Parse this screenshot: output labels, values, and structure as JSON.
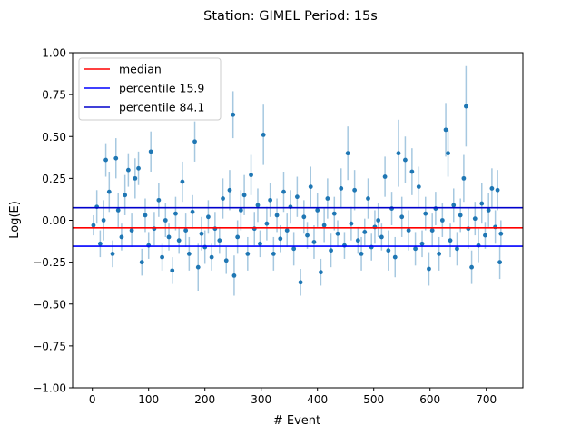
{
  "chart_data": {
    "type": "scatter",
    "title": "Station: GIMEL Period: 15s",
    "xlabel": "# Event",
    "ylabel": "Log(E)",
    "xlim": [
      -35,
      765
    ],
    "ylim": [
      -1.0,
      1.0
    ],
    "xticks": [
      0,
      100,
      200,
      300,
      400,
      500,
      600,
      700
    ],
    "xtick_labels": [
      "0",
      "100",
      "200",
      "300",
      "400",
      "500",
      "600",
      "700"
    ],
    "yticks": [
      -1.0,
      -0.75,
      -0.5,
      -0.25,
      0.0,
      0.25,
      0.5,
      0.75,
      1.0
    ],
    "ytick_labels": [
      "−1.00",
      "−0.75",
      "−0.50",
      "−0.25",
      "0.00",
      "0.25",
      "0.50",
      "0.75",
      "1.00"
    ],
    "grid": false,
    "legend_position": "top-left",
    "legend": [
      {
        "label": "median",
        "color": "#ff0000"
      },
      {
        "label": "percentile 15.9",
        "color": "#0000ff"
      },
      {
        "label": "percentile 84.1",
        "color": "#0000cc"
      }
    ],
    "hlines": [
      {
        "name": "median",
        "y": -0.045,
        "color": "#ff0000"
      },
      {
        "name": "percentile 15.9",
        "y": -0.155,
        "color": "#0000ff"
      },
      {
        "name": "percentile 84.1",
        "y": 0.075,
        "color": "#0000cc"
      }
    ],
    "point_color": "#1f77b4",
    "errorbar_color": "#a6c8e0",
    "points": [
      {
        "x": 2,
        "y": -0.03,
        "err": 0.06
      },
      {
        "x": 8,
        "y": 0.08,
        "err": 0.1
      },
      {
        "x": 14,
        "y": -0.14,
        "err": 0.08
      },
      {
        "x": 20,
        "y": 0.0,
        "err": 0.12
      },
      {
        "x": 24,
        "y": 0.36,
        "err": 0.1
      },
      {
        "x": 30,
        "y": 0.17,
        "err": 0.12
      },
      {
        "x": 36,
        "y": -0.2,
        "err": 0.08
      },
      {
        "x": 42,
        "y": 0.37,
        "err": 0.12
      },
      {
        "x": 46,
        "y": 0.06,
        "err": 0.1
      },
      {
        "x": 52,
        "y": -0.1,
        "err": 0.08
      },
      {
        "x": 58,
        "y": 0.15,
        "err": 0.12
      },
      {
        "x": 64,
        "y": 0.3,
        "err": 0.1
      },
      {
        "x": 70,
        "y": -0.06,
        "err": 0.1
      },
      {
        "x": 76,
        "y": 0.25,
        "err": 0.12
      },
      {
        "x": 82,
        "y": 0.31,
        "err": 0.1
      },
      {
        "x": 88,
        "y": -0.25,
        "err": 0.08
      },
      {
        "x": 94,
        "y": 0.03,
        "err": 0.1
      },
      {
        "x": 100,
        "y": -0.15,
        "err": 0.08
      },
      {
        "x": 104,
        "y": 0.41,
        "err": 0.12
      },
      {
        "x": 110,
        "y": -0.05,
        "err": 0.1
      },
      {
        "x": 118,
        "y": 0.12,
        "err": 0.1
      },
      {
        "x": 124,
        "y": -0.22,
        "err": 0.08
      },
      {
        "x": 130,
        "y": 0.0,
        "err": 0.1
      },
      {
        "x": 136,
        "y": -0.1,
        "err": 0.08
      },
      {
        "x": 142,
        "y": -0.3,
        "err": 0.08
      },
      {
        "x": 148,
        "y": 0.04,
        "err": 0.1
      },
      {
        "x": 154,
        "y": -0.12,
        "err": 0.08
      },
      {
        "x": 160,
        "y": 0.23,
        "err": 0.12
      },
      {
        "x": 166,
        "y": -0.06,
        "err": 0.1
      },
      {
        "x": 172,
        "y": -0.2,
        "err": 0.1
      },
      {
        "x": 178,
        "y": 0.05,
        "err": 0.1
      },
      {
        "x": 182,
        "y": 0.47,
        "err": 0.12
      },
      {
        "x": 188,
        "y": -0.28,
        "err": 0.14
      },
      {
        "x": 194,
        "y": -0.08,
        "err": 0.1
      },
      {
        "x": 200,
        "y": -0.16,
        "err": 0.1
      },
      {
        "x": 206,
        "y": 0.02,
        "err": 0.1
      },
      {
        "x": 212,
        "y": -0.22,
        "err": 0.08
      },
      {
        "x": 218,
        "y": -0.05,
        "err": 0.1
      },
      {
        "x": 226,
        "y": -0.12,
        "err": 0.08
      },
      {
        "x": 232,
        "y": 0.13,
        "err": 0.12
      },
      {
        "x": 238,
        "y": -0.24,
        "err": 0.08
      },
      {
        "x": 244,
        "y": 0.18,
        "err": 0.12
      },
      {
        "x": 250,
        "y": 0.63,
        "err": 0.14
      },
      {
        "x": 252,
        "y": -0.33,
        "err": 0.12
      },
      {
        "x": 258,
        "y": -0.1,
        "err": 0.1
      },
      {
        "x": 264,
        "y": 0.06,
        "err": 0.12
      },
      {
        "x": 270,
        "y": 0.15,
        "err": 0.12
      },
      {
        "x": 276,
        "y": -0.2,
        "err": 0.1
      },
      {
        "x": 282,
        "y": 0.27,
        "err": 0.12
      },
      {
        "x": 288,
        "y": -0.05,
        "err": 0.1
      },
      {
        "x": 294,
        "y": 0.09,
        "err": 0.1
      },
      {
        "x": 298,
        "y": -0.14,
        "err": 0.08
      },
      {
        "x": 304,
        "y": 0.51,
        "err": 0.18
      },
      {
        "x": 310,
        "y": -0.02,
        "err": 0.1
      },
      {
        "x": 316,
        "y": 0.12,
        "err": 0.1
      },
      {
        "x": 322,
        "y": -0.2,
        "err": 0.1
      },
      {
        "x": 328,
        "y": 0.03,
        "err": 0.1
      },
      {
        "x": 334,
        "y": -0.11,
        "err": 0.08
      },
      {
        "x": 340,
        "y": 0.17,
        "err": 0.12
      },
      {
        "x": 346,
        "y": -0.06,
        "err": 0.1
      },
      {
        "x": 352,
        "y": 0.08,
        "err": 0.1
      },
      {
        "x": 358,
        "y": -0.17,
        "err": 0.1
      },
      {
        "x": 364,
        "y": 0.14,
        "err": 0.12
      },
      {
        "x": 370,
        "y": -0.37,
        "err": 0.08
      },
      {
        "x": 376,
        "y": 0.02,
        "err": 0.1
      },
      {
        "x": 382,
        "y": -0.09,
        "err": 0.08
      },
      {
        "x": 388,
        "y": 0.2,
        "err": 0.12
      },
      {
        "x": 394,
        "y": -0.13,
        "err": 0.1
      },
      {
        "x": 400,
        "y": 0.06,
        "err": 0.1
      },
      {
        "x": 406,
        "y": -0.31,
        "err": 0.08
      },
      {
        "x": 412,
        "y": -0.03,
        "err": 0.1
      },
      {
        "x": 418,
        "y": 0.13,
        "err": 0.12
      },
      {
        "x": 424,
        "y": -0.18,
        "err": 0.1
      },
      {
        "x": 430,
        "y": 0.04,
        "err": 0.1
      },
      {
        "x": 436,
        "y": -0.08,
        "err": 0.08
      },
      {
        "x": 442,
        "y": 0.19,
        "err": 0.12
      },
      {
        "x": 448,
        "y": -0.15,
        "err": 0.08
      },
      {
        "x": 454,
        "y": 0.4,
        "err": 0.16
      },
      {
        "x": 460,
        "y": -0.02,
        "err": 0.1
      },
      {
        "x": 466,
        "y": 0.18,
        "err": 0.12
      },
      {
        "x": 472,
        "y": -0.12,
        "err": 0.08
      },
      {
        "x": 478,
        "y": -0.2,
        "err": 0.1
      },
      {
        "x": 484,
        "y": -0.07,
        "err": 0.08
      },
      {
        "x": 490,
        "y": 0.13,
        "err": 0.12
      },
      {
        "x": 496,
        "y": -0.16,
        "err": 0.08
      },
      {
        "x": 502,
        "y": -0.04,
        "err": 0.1
      },
      {
        "x": 508,
        "y": 0.0,
        "err": 0.1
      },
      {
        "x": 514,
        "y": -0.1,
        "err": 0.08
      },
      {
        "x": 520,
        "y": 0.26,
        "err": 0.12
      },
      {
        "x": 526,
        "y": -0.18,
        "err": 0.12
      },
      {
        "x": 532,
        "y": 0.07,
        "err": 0.1
      },
      {
        "x": 538,
        "y": -0.22,
        "err": 0.12
      },
      {
        "x": 544,
        "y": 0.4,
        "err": 0.2
      },
      {
        "x": 550,
        "y": 0.02,
        "err": 0.12
      },
      {
        "x": 556,
        "y": 0.36,
        "err": 0.14
      },
      {
        "x": 562,
        "y": -0.06,
        "err": 0.12
      },
      {
        "x": 568,
        "y": 0.29,
        "err": 0.14
      },
      {
        "x": 574,
        "y": -0.17,
        "err": 0.1
      },
      {
        "x": 580,
        "y": 0.2,
        "err": 0.12
      },
      {
        "x": 586,
        "y": -0.14,
        "err": 0.08
      },
      {
        "x": 592,
        "y": 0.04,
        "err": 0.1
      },
      {
        "x": 598,
        "y": -0.29,
        "err": 0.1
      },
      {
        "x": 604,
        "y": -0.06,
        "err": 0.1
      },
      {
        "x": 610,
        "y": 0.07,
        "err": 0.1
      },
      {
        "x": 616,
        "y": -0.2,
        "err": 0.1
      },
      {
        "x": 622,
        "y": 0.0,
        "err": 0.1
      },
      {
        "x": 628,
        "y": 0.54,
        "err": 0.16
      },
      {
        "x": 632,
        "y": 0.4,
        "err": 0.14
      },
      {
        "x": 636,
        "y": -0.12,
        "err": 0.1
      },
      {
        "x": 642,
        "y": 0.09,
        "err": 0.1
      },
      {
        "x": 648,
        "y": -0.17,
        "err": 0.1
      },
      {
        "x": 654,
        "y": 0.03,
        "err": 0.1
      },
      {
        "x": 660,
        "y": 0.25,
        "err": 0.14
      },
      {
        "x": 664,
        "y": 0.68,
        "err": 0.24
      },
      {
        "x": 668,
        "y": -0.05,
        "err": 0.12
      },
      {
        "x": 674,
        "y": -0.28,
        "err": 0.1
      },
      {
        "x": 680,
        "y": 0.01,
        "err": 0.1
      },
      {
        "x": 686,
        "y": -0.15,
        "err": 0.1
      },
      {
        "x": 692,
        "y": 0.1,
        "err": 0.12
      },
      {
        "x": 698,
        "y": -0.09,
        "err": 0.08
      },
      {
        "x": 704,
        "y": 0.06,
        "err": 0.1
      },
      {
        "x": 710,
        "y": 0.19,
        "err": 0.12
      },
      {
        "x": 716,
        "y": -0.04,
        "err": 0.1
      },
      {
        "x": 720,
        "y": 0.18,
        "err": 0.12
      },
      {
        "x": 724,
        "y": -0.25,
        "err": 0.1
      },
      {
        "x": 726,
        "y": -0.08,
        "err": 0.08
      }
    ]
  }
}
